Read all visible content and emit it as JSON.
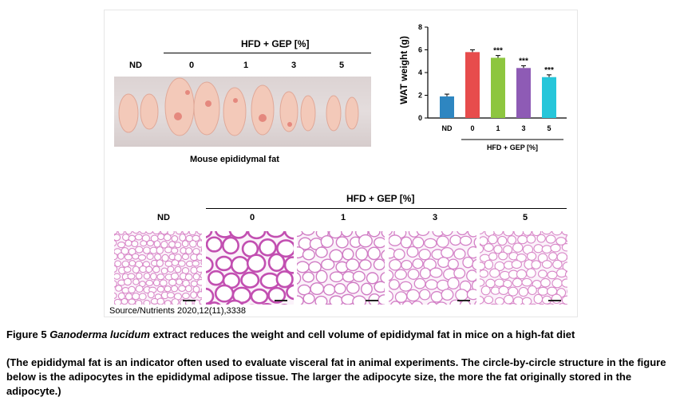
{
  "figure": {
    "photo_group_header": "HFD + GEP [%]",
    "photo_labels": [
      "ND",
      "0",
      "1",
      "3",
      "5"
    ],
    "photo_caption": "Mouse epididymal fat",
    "histo_group_header": "HFD + GEP [%]",
    "histo_labels": [
      "ND",
      "0",
      "1",
      "3",
      "5"
    ],
    "source": "Source/Nutrients 2020,12(11),3338"
  },
  "chart_data": {
    "type": "bar",
    "categories": [
      "ND",
      "0",
      "1",
      "3",
      "5"
    ],
    "values": [
      1.9,
      5.8,
      5.3,
      4.4,
      3.6
    ],
    "errors": [
      0.2,
      0.2,
      0.2,
      0.2,
      0.2
    ],
    "significance": [
      "",
      "",
      "***",
      "***",
      "***"
    ],
    "colors": [
      "#2e86c1",
      "#e74c4c",
      "#8dc63f",
      "#8e5bb5",
      "#26c6da"
    ],
    "ylabel": "WAT weight (g)",
    "ylim": [
      0,
      8
    ],
    "yticks": [
      "0",
      "2",
      "4",
      "6",
      "8"
    ],
    "group_label": "HFD + GEP [%]"
  },
  "caption": {
    "prefix": "Figure 5 ",
    "italic": "Ganoderma lucidum",
    "rest": " extract reduces the weight and cell volume of epididymal fat in mice on a high-fat diet"
  },
  "note": "(The epididymal fat is an indicator often used to evaluate visceral fat in animal experiments. The circle-by-circle structure in the figure below is the adipocytes in the epididymal adipose tissue. The larger the adipocyte size, the more the fat originally stored in the adipocyte.)"
}
